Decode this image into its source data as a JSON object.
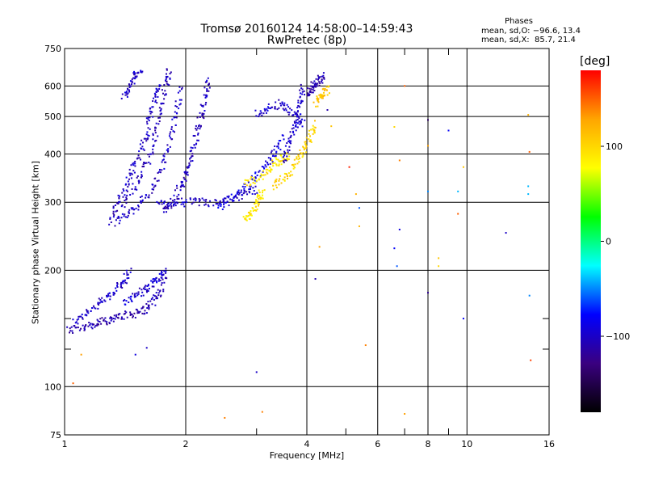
{
  "chart_data": {
    "type": "scatter",
    "title": "Tromsø 20160124 14:58:00–14:59:43",
    "subtitle": "RwPretec (8p)",
    "xlabel": "Frequency [MHz]",
    "ylabel": "Stationary phase Virtual Height [km]",
    "x_scale": "log",
    "y_scale": "log",
    "xlim": [
      1,
      16
    ],
    "ylim": [
      75,
      750
    ],
    "x_ticks": [
      1,
      2,
      4,
      6,
      8,
      10,
      16
    ],
    "y_ticks": [
      75,
      100,
      200,
      300,
      400,
      500,
      600,
      750
    ],
    "x_minor_ticks": [
      3,
      5,
      7,
      9
    ],
    "y_minor_ticks": [
      125,
      150
    ],
    "grid": true,
    "stats": {
      "heading": "Phases",
      "line_o": "mean, sd,O: −96.6, 13.4",
      "line_x": "mean, sd,X:  85.7, 21.4"
    },
    "colorbar": {
      "unit": "[deg]",
      "range": [
        -180,
        180
      ],
      "ticks": [
        100,
        0,
        -100
      ],
      "colormap": [
        "#000000",
        "#3a0080",
        "#0000ff",
        "#00ffff",
        "#00ff00",
        "#ffff00",
        "#ffa500",
        "#ff0000"
      ]
    },
    "traces": [
      {
        "phase": -100,
        "points": [
          [
            1.05,
            145
          ],
          [
            1.12,
            155
          ],
          [
            1.2,
            162
          ],
          [
            1.28,
            170
          ],
          [
            1.35,
            180
          ],
          [
            1.4,
            188
          ],
          [
            1.45,
            200
          ]
        ]
      },
      {
        "phase": -110,
        "points": [
          [
            1.02,
            140
          ],
          [
            1.1,
            142
          ],
          [
            1.18,
            145
          ],
          [
            1.25,
            148
          ],
          [
            1.32,
            150
          ],
          [
            1.4,
            152
          ],
          [
            1.5,
            155
          ],
          [
            1.58,
            158
          ],
          [
            1.65,
            165
          ],
          [
            1.72,
            175
          ],
          [
            1.78,
            195
          ]
        ]
      },
      {
        "phase": -95,
        "points": [
          [
            1.4,
            165
          ],
          [
            1.5,
            172
          ],
          [
            1.58,
            178
          ],
          [
            1.66,
            185
          ],
          [
            1.72,
            192
          ],
          [
            1.8,
            200
          ]
        ]
      },
      {
        "phase": -100,
        "points": [
          [
            1.3,
            265
          ],
          [
            1.4,
            275
          ],
          [
            1.5,
            290
          ],
          [
            1.6,
            310
          ],
          [
            1.7,
            345
          ],
          [
            1.78,
            390
          ],
          [
            1.85,
            450
          ],
          [
            1.9,
            520
          ],
          [
            1.95,
            600
          ]
        ]
      },
      {
        "phase": -105,
        "points": [
          [
            1.3,
            280
          ],
          [
            1.4,
            300
          ],
          [
            1.5,
            330
          ],
          [
            1.58,
            365
          ],
          [
            1.65,
            410
          ],
          [
            1.7,
            470
          ],
          [
            1.75,
            540
          ],
          [
            1.8,
            620
          ],
          [
            1.82,
            660
          ]
        ]
      },
      {
        "phase": -100,
        "points": [
          [
            1.35,
            300
          ],
          [
            1.42,
            330
          ],
          [
            1.48,
            365
          ],
          [
            1.54,
            405
          ],
          [
            1.6,
            450
          ],
          [
            1.64,
            510
          ],
          [
            1.68,
            560
          ],
          [
            1.72,
            610
          ]
        ]
      },
      {
        "phase": -100,
        "points": [
          [
            1.4,
            560
          ],
          [
            1.45,
            600
          ],
          [
            1.5,
            640
          ],
          [
            1.55,
            650
          ]
        ]
      },
      {
        "phase": -105,
        "points": [
          [
            1.75,
            285
          ],
          [
            1.85,
            300
          ],
          [
            1.95,
            330
          ],
          [
            2.0,
            350
          ],
          [
            2.05,
            380
          ],
          [
            2.1,
            420
          ],
          [
            2.15,
            470
          ],
          [
            2.2,
            520
          ],
          [
            2.25,
            580
          ],
          [
            2.3,
            620
          ]
        ]
      },
      {
        "phase": -100,
        "points": [
          [
            1.7,
            295
          ],
          [
            1.85,
            300
          ],
          [
            2.0,
            300
          ],
          [
            2.2,
            300
          ],
          [
            2.4,
            298
          ],
          [
            2.6,
            305
          ],
          [
            2.8,
            315
          ],
          [
            3.0,
            325
          ]
        ]
      },
      {
        "phase": -90,
        "points": [
          [
            2.4,
            290
          ],
          [
            2.6,
            305
          ],
          [
            2.8,
            325
          ],
          [
            3.0,
            350
          ],
          [
            3.2,
            380
          ],
          [
            3.35,
            410
          ],
          [
            3.5,
            440
          ]
        ]
      },
      {
        "phase": 90,
        "points": [
          [
            2.8,
            335
          ],
          [
            3.0,
            345
          ],
          [
            3.2,
            360
          ],
          [
            3.35,
            380
          ],
          [
            3.5,
            390
          ],
          [
            3.6,
            395
          ]
        ]
      },
      {
        "phase": 100,
        "points": [
          [
            3.3,
            330
          ],
          [
            3.5,
            345
          ],
          [
            3.7,
            365
          ],
          [
            3.85,
            395
          ],
          [
            4.0,
            420
          ],
          [
            4.1,
            450
          ],
          [
            4.2,
            480
          ]
        ]
      },
      {
        "phase": -100,
        "points": [
          [
            3.0,
            510
          ],
          [
            3.2,
            520
          ],
          [
            3.4,
            540
          ],
          [
            3.6,
            520
          ],
          [
            3.8,
            500
          ],
          [
            3.9,
            480
          ]
        ]
      },
      {
        "phase": -100,
        "points": [
          [
            3.5,
            380
          ],
          [
            3.6,
            420
          ],
          [
            3.7,
            460
          ],
          [
            3.8,
            500
          ],
          [
            3.85,
            550
          ],
          [
            3.9,
            600
          ]
        ]
      },
      {
        "phase": -110,
        "points": [
          [
            4.0,
            560
          ],
          [
            4.1,
            590
          ],
          [
            4.2,
            610
          ],
          [
            4.3,
            620
          ],
          [
            4.4,
            640
          ]
        ]
      },
      {
        "phase": 110,
        "points": [
          [
            4.2,
            540
          ],
          [
            4.3,
            560
          ],
          [
            4.4,
            575
          ],
          [
            4.5,
            590
          ]
        ]
      },
      {
        "phase": 90,
        "points": [
          [
            2.8,
            275
          ],
          [
            2.9,
            280
          ],
          [
            3.0,
            295
          ],
          [
            3.05,
            305
          ],
          [
            3.1,
            320
          ]
        ]
      }
    ],
    "isolated_points": [
      [
        1.05,
        102,
        150
      ],
      [
        1.1,
        121,
        130
      ],
      [
        1.5,
        121,
        -90
      ],
      [
        1.6,
        126,
        -100
      ],
      [
        2.5,
        83,
        140
      ],
      [
        3.0,
        109,
        -100
      ],
      [
        3.1,
        86,
        140
      ],
      [
        4.2,
        190,
        -110
      ],
      [
        4.3,
        230,
        130
      ],
      [
        4.6,
        472,
        110
      ],
      [
        4.5,
        520,
        -110
      ],
      [
        5.6,
        128,
        140
      ],
      [
        5.1,
        370,
        170
      ],
      [
        5.3,
        315,
        120
      ],
      [
        5.4,
        290,
        -60
      ],
      [
        5.4,
        260,
        120
      ],
      [
        6.7,
        205,
        -60
      ],
      [
        6.6,
        228,
        -80
      ],
      [
        6.6,
        470,
        100
      ],
      [
        6.8,
        255,
        -90
      ],
      [
        6.8,
        385,
        140
      ],
      [
        7.0,
        85,
        130
      ],
      [
        7.0,
        600,
        150
      ],
      [
        8.0,
        490,
        -140
      ],
      [
        8.0,
        420,
        130
      ],
      [
        8.0,
        175,
        -120
      ],
      [
        8.0,
        320,
        -50
      ],
      [
        8.5,
        205,
        100
      ],
      [
        8.5,
        215,
        110
      ],
      [
        9.0,
        460,
        -80
      ],
      [
        9.5,
        320,
        -40
      ],
      [
        9.5,
        280,
        150
      ],
      [
        9.8,
        370,
        110
      ],
      [
        9.8,
        150,
        -80
      ],
      [
        12.5,
        250,
        -100
      ],
      [
        14.2,
        505,
        120
      ],
      [
        14.2,
        315,
        -40
      ],
      [
        14.2,
        330,
        -40
      ],
      [
        14.3,
        405,
        150
      ],
      [
        14.3,
        172,
        -50
      ],
      [
        14.4,
        117,
        160
      ]
    ]
  }
}
